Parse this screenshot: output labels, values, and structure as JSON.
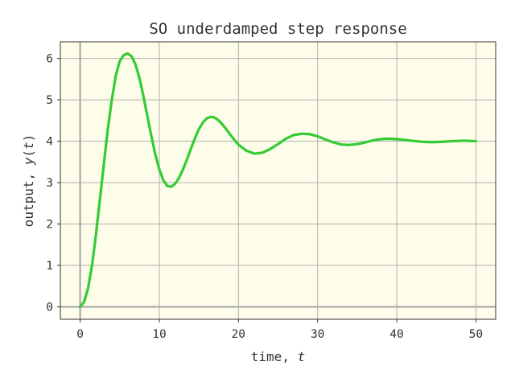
{
  "chart_data": {
    "type": "line",
    "title": "SO underdamped step response",
    "xlabel_prefix": "time, ",
    "xlabel_var": "t",
    "ylabel_prefix": "output, ",
    "ylabel_var": "y",
    "ylabel_var_arg": "t",
    "xlim": [
      -2.5,
      52.5
    ],
    "ylim": [
      -0.3,
      6.4
    ],
    "xticks": [
      0,
      10,
      20,
      30,
      40,
      50
    ],
    "yticks": [
      0,
      1,
      2,
      3,
      4,
      5,
      6
    ],
    "grid": true,
    "background_color": "#fdfdea",
    "line_color": "#33cc33",
    "zero_line_color": "#aaaaaa",
    "series": [
      {
        "x": [
          0,
          0.5,
          1,
          1.5,
          2,
          2.5,
          3,
          3.5,
          4,
          4.5,
          5,
          5.5,
          6,
          6.5,
          7,
          7.5,
          8,
          8.5,
          9,
          9.5,
          10,
          10.5,
          11,
          11.5,
          12,
          12.5,
          13,
          13.5,
          14,
          14.5,
          15,
          15.5,
          16,
          16.5,
          17,
          17.5,
          18,
          18.5,
          19,
          19.5,
          20,
          21,
          22,
          23,
          24,
          25,
          26,
          27,
          28,
          29,
          30,
          31,
          32,
          33,
          34,
          35,
          36,
          37,
          38,
          39,
          40,
          41,
          42,
          43,
          44,
          45,
          46,
          47,
          48,
          49,
          50
        ],
        "y": [
          0,
          0.12,
          0.45,
          1.0,
          1.75,
          2.6,
          3.45,
          4.3,
          5.0,
          5.58,
          5.93,
          6.08,
          6.12,
          6.05,
          5.85,
          5.52,
          5.08,
          4.6,
          4.12,
          3.68,
          3.32,
          3.06,
          2.92,
          2.9,
          2.97,
          3.12,
          3.32,
          3.56,
          3.82,
          4.07,
          4.29,
          4.45,
          4.55,
          4.59,
          4.57,
          4.5,
          4.4,
          4.28,
          4.15,
          4.03,
          3.92,
          3.77,
          3.7,
          3.72,
          3.81,
          3.93,
          4.06,
          4.15,
          4.18,
          4.17,
          4.12,
          4.04,
          3.97,
          3.92,
          3.91,
          3.93,
          3.97,
          4.02,
          4.05,
          4.06,
          4.05,
          4.03,
          4.01,
          3.99,
          3.98,
          3.98,
          3.99,
          4.0,
          4.01,
          4.01,
          4.0
        ]
      }
    ]
  }
}
